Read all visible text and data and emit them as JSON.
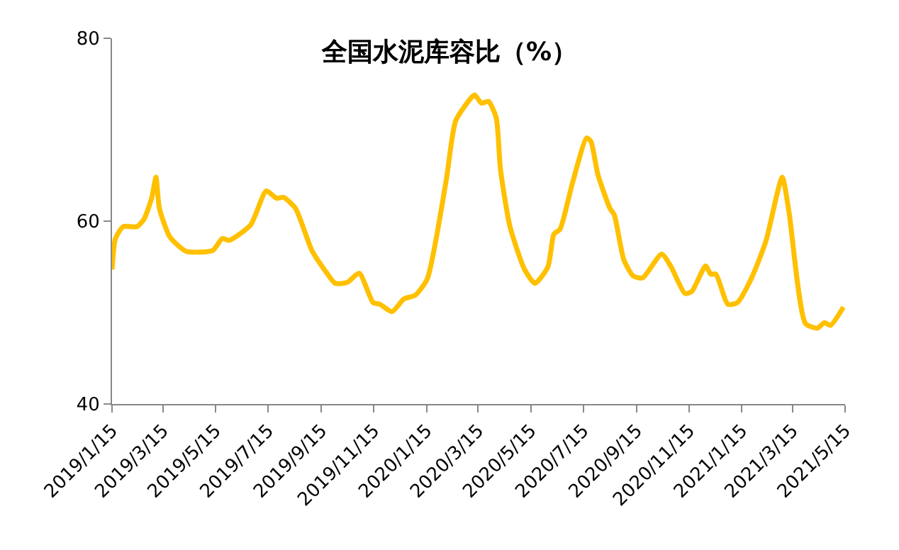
{
  "chart_data": {
    "type": "line",
    "title": "全国水泥库容比（%）",
    "x": [
      "2019-01-15",
      "2019-01-19",
      "2019-01-28",
      "2019-02-13",
      "2019-02-21",
      "2019-03-02",
      "2019-03-07",
      "2019-03-11",
      "2019-03-23",
      "2019-04-11",
      "2019-05-12",
      "2019-05-23",
      "2019-05-31",
      "2019-06-25",
      "2019-07-13",
      "2019-07-25",
      "2019-08-02",
      "2019-08-16",
      "2019-09-04",
      "2019-09-20",
      "2019-10-01",
      "2019-10-15",
      "2019-10-29",
      "2019-11-14",
      "2019-11-22",
      "2019-12-06",
      "2019-12-20",
      "2020-01-02",
      "2020-01-16",
      "2020-02-07",
      "2020-02-18",
      "2020-03-08",
      "2020-03-11",
      "2020-03-19",
      "2020-03-27",
      "2020-04-05",
      "2020-04-10",
      "2020-04-21",
      "2020-05-08",
      "2020-05-20",
      "2020-06-04",
      "2020-06-11",
      "2020-06-18",
      "2020-07-02",
      "2020-07-19",
      "2020-07-24",
      "2020-08-01",
      "2020-08-15",
      "2020-08-20",
      "2020-08-31",
      "2020-09-11",
      "2020-09-22",
      "2020-10-14",
      "2020-10-25",
      "2020-11-10",
      "2020-11-18",
      "2020-12-04",
      "2020-12-10",
      "2020-12-16",
      "2020-12-30",
      "2021-01-10",
      "2021-01-26",
      "2021-02-12",
      "2021-03-03",
      "2021-03-11",
      "2021-03-30",
      "2021-04-13",
      "2021-04-21",
      "2021-04-28",
      "2021-05-13"
    ],
    "series": [
      {
        "color": "#ffc000",
        "values": [
          54.7,
          58.1,
          59.4,
          59.4,
          60.2,
          62.5,
          64.8,
          61.4,
          58.3,
          56.7,
          56.8,
          58.1,
          57.9,
          59.6,
          63.3,
          62.5,
          62.6,
          61.4,
          56.8,
          54.5,
          53.2,
          53.3,
          54.3,
          51.1,
          50.9,
          50.1,
          51.5,
          51.9,
          53.7,
          64.5,
          71.0,
          73.6,
          73.8,
          72.9,
          73.1,
          71.3,
          65.6,
          59.4,
          54.7,
          53.2,
          55.0,
          58.6,
          59.1,
          64.0,
          69.1,
          68.7,
          65.1,
          61.4,
          60.7,
          55.8,
          54.0,
          53.8,
          56.4,
          55.0,
          52.1,
          52.3,
          55.1,
          54.2,
          54.2,
          50.9,
          51.1,
          53.7,
          57.8,
          64.8,
          60.9,
          48.8,
          48.3,
          48.9,
          48.6,
          50.6
        ]
      }
    ],
    "xlim": [
      "2019-01-15",
      "2021-05-15"
    ],
    "xticks": [
      {
        "value": "2019-01-15",
        "label": "2019/1/15"
      },
      {
        "value": "2019-03-15",
        "label": "2019/3/15"
      },
      {
        "value": "2019-05-15",
        "label": "2019/5/15"
      },
      {
        "value": "2019-07-15",
        "label": "2019/7/15"
      },
      {
        "value": "2019-09-15",
        "label": "2019/9/15"
      },
      {
        "value": "2019-11-15",
        "label": "2019/11/15"
      },
      {
        "value": "2020-01-15",
        "label": "2020/1/15"
      },
      {
        "value": "2020-03-15",
        "label": "2020/3/15"
      },
      {
        "value": "2020-05-15",
        "label": "2020/5/15"
      },
      {
        "value": "2020-07-15",
        "label": "2020/7/15"
      },
      {
        "value": "2020-09-15",
        "label": "2020/9/15"
      },
      {
        "value": "2020-11-15",
        "label": "2020/11/15"
      },
      {
        "value": "2021-01-15",
        "label": "2021/1/15"
      },
      {
        "value": "2021-03-15",
        "label": "2021/3/15"
      },
      {
        "value": "2021-05-15",
        "label": "2021/5/15"
      }
    ],
    "ylim": [
      40,
      80
    ],
    "yticks": [
      40,
      60,
      80
    ],
    "marker": "none",
    "line_style": "solid"
  }
}
